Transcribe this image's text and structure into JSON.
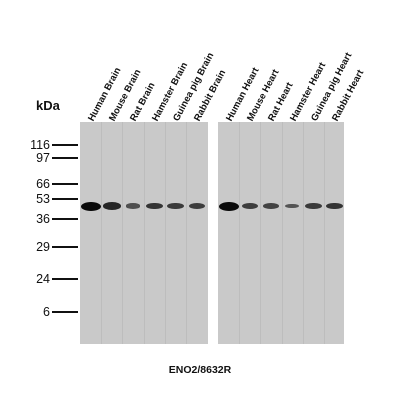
{
  "lanes_left": [
    {
      "label": "Human Brain",
      "band": 1.0
    },
    {
      "label": "Mouse Brain",
      "band": 0.75
    },
    {
      "label": "Rat Brain",
      "band": 0.35
    },
    {
      "label": "Hamster Brain",
      "band": 0.6
    },
    {
      "label": "Guinea pig Brain",
      "band": 0.55
    },
    {
      "label": "Rabbit Brain",
      "band": 0.5
    }
  ],
  "lanes_right": [
    {
      "label": "Human Heart",
      "band": 1.0
    },
    {
      "label": "Mouse Heart",
      "band": 0.5
    },
    {
      "label": "Rat Heart",
      "band": 0.45
    },
    {
      "label": "Hamster Heart",
      "band": 0.3
    },
    {
      "label": "Guinea pig Heart",
      "band": 0.55
    },
    {
      "label": "Rabbit Heart",
      "band": 0.6
    }
  ],
  "unit_label": "kDa",
  "markers": [
    "116",
    "97",
    "66",
    "53",
    "36",
    "29",
    "24",
    "6"
  ],
  "antibody_label": "ENO2/8632R",
  "colors": {
    "membrane": "#c9c9c9",
    "band": "#0a0a0a"
  }
}
